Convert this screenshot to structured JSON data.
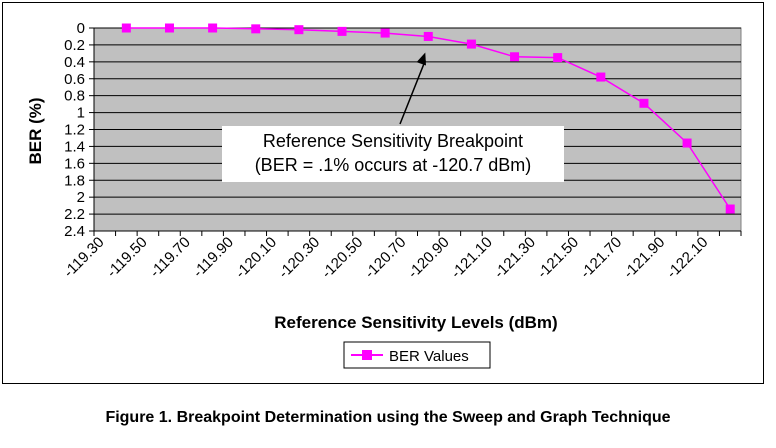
{
  "caption": "Figure 1.  Breakpoint Determination using the Sweep and Graph Technique",
  "colors": {
    "plot_background": "#c0c0c0",
    "series": "#ff00ff",
    "gridline": "#000000"
  },
  "annotation": {
    "line1": "Reference Sensitivity Breakpoint",
    "line2": "(BER = .1% occurs at -120.7 dBm)",
    "points_to_x": -120.7
  },
  "chart_data": {
    "type": "line",
    "xlabel": "Reference Sensitivity Levels (dBm)",
    "ylabel": "BER (%)",
    "categories": [
      "-119.30",
      "-119.40",
      "-119.50",
      "-119.60",
      "-119.70",
      "-119.80",
      "-119.90",
      "-120.00",
      "-120.10",
      "-120.20",
      "-120.30",
      "-120.40",
      "-120.50",
      "-120.60",
      "-120.70",
      "-120.80",
      "-120.90",
      "-121.00",
      "-121.10",
      "-121.20",
      "-121.30",
      "-121.40",
      "-121.50",
      "-121.60",
      "-121.70",
      "-121.80",
      "-121.90",
      "-122.00",
      "-122.10",
      "-122.20"
    ],
    "x_tick_labels": [
      "-119.30",
      "-119.50",
      "-119.70",
      "-119.90",
      "-120.10",
      "-120.30",
      "-120.50",
      "-120.70",
      "-120.90",
      "-121.10",
      "-121.30",
      "-121.50",
      "-121.70",
      "-121.90",
      "-122.10"
    ],
    "points": [
      {
        "x": -119.4,
        "y": 0.0
      },
      {
        "x": -119.6,
        "y": 0.0
      },
      {
        "x": -119.8,
        "y": 0.0
      },
      {
        "x": -120.0,
        "y": 0.01
      },
      {
        "x": -120.2,
        "y": 0.02
      },
      {
        "x": -120.4,
        "y": 0.04
      },
      {
        "x": -120.6,
        "y": 0.06
      },
      {
        "x": -120.8,
        "y": 0.1
      },
      {
        "x": -121.0,
        "y": 0.19
      },
      {
        "x": -121.2,
        "y": 0.34
      },
      {
        "x": -121.4,
        "y": 0.35
      },
      {
        "x": -121.6,
        "y": 0.58
      },
      {
        "x": -121.8,
        "y": 0.89
      },
      {
        "x": -122.0,
        "y": 1.36
      },
      {
        "x": -122.2,
        "y": 2.14
      }
    ],
    "series": [
      {
        "name": "BER Values"
      }
    ],
    "y_ticks": [
      "0",
      "0.2",
      "0.4",
      "0.6",
      "0.8",
      "1",
      "1.2",
      "1.4",
      "1.6",
      "1.8",
      "2",
      "2.2",
      "2.4"
    ],
    "ylim": [
      0,
      2.4
    ],
    "y_inverted": true,
    "grid": "horizontal",
    "legend_position": "bottom"
  }
}
